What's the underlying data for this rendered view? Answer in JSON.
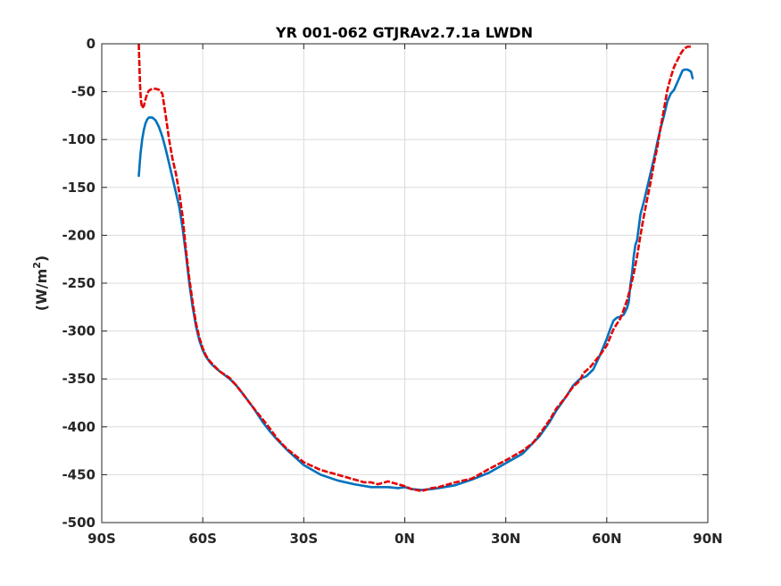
{
  "chart_data": {
    "type": "line",
    "title": "YR 001-062 GTJRAv2.7.1a LWDN",
    "xlabel": "",
    "ylabel": "(W/m",
    "ylabel_sup": "2",
    "ylabel_close": ")",
    "xlim": [
      -90,
      90
    ],
    "ylim": [
      -500,
      0
    ],
    "xticks": [
      -90,
      -60,
      -30,
      0,
      30,
      60,
      90
    ],
    "xtick_labels": [
      "90S",
      "60S",
      "30S",
      "0N",
      "30N",
      "60N",
      "90N"
    ],
    "yticks": [
      0,
      -50,
      -100,
      -150,
      -200,
      -250,
      -300,
      -350,
      -400,
      -450,
      -500
    ],
    "ytick_labels": [
      "0",
      "-50",
      "-100",
      "-150",
      "-200",
      "-250",
      "-300",
      "-350",
      "-400",
      "-450",
      "-500"
    ],
    "grid": true,
    "legend": "none",
    "series": [
      {
        "color": "#0072bd",
        "style": "solid",
        "x": [
          -79,
          -78.5,
          -78,
          -77.5,
          -77,
          -76.5,
          -76,
          -75,
          -74,
          -73,
          -72,
          -71,
          -70,
          -69,
          -68,
          -67,
          -66,
          -65,
          -64,
          -63,
          -62,
          -61,
          -60,
          -59,
          -58,
          -57,
          -55,
          -52,
          -50,
          -48,
          -45,
          -42,
          -40,
          -38,
          -35,
          -30,
          -25,
          -20,
          -15,
          -10,
          -5,
          -2,
          0,
          2,
          5,
          8,
          10,
          15,
          20,
          25,
          30,
          35,
          40,
          43,
          45,
          48,
          50,
          52,
          54,
          56,
          58,
          60,
          61,
          62,
          63,
          64,
          65,
          66,
          66.5,
          67,
          67.5,
          68,
          68.5,
          69,
          70,
          71,
          72,
          73,
          74,
          75,
          76,
          77,
          78,
          79,
          80,
          81,
          82,
          82.5,
          83,
          84,
          85,
          85.5
        ],
        "y": [
          -138,
          -115,
          -100,
          -90,
          -83,
          -79,
          -77,
          -77,
          -80,
          -87,
          -97,
          -110,
          -125,
          -140,
          -155,
          -170,
          -192,
          -220,
          -250,
          -275,
          -295,
          -310,
          -320,
          -327,
          -332,
          -336,
          -342,
          -350,
          -357,
          -366,
          -380,
          -396,
          -405,
          -413,
          -424,
          -440,
          -450,
          -456,
          -460,
          -463,
          -463,
          -464,
          -463,
          -465,
          -466,
          -465,
          -464,
          -461,
          -455,
          -448,
          -438,
          -428,
          -410,
          -395,
          -383,
          -368,
          -357,
          -350,
          -347,
          -340,
          -325,
          -308,
          -298,
          -289,
          -286,
          -285,
          -283,
          -276,
          -270,
          -252,
          -240,
          -222,
          -210,
          -205,
          -178,
          -165,
          -150,
          -135,
          -120,
          -103,
          -88,
          -75,
          -60,
          -52,
          -48,
          -40,
          -32,
          -28,
          -27,
          -27,
          -29,
          -36
        ]
      },
      {
        "color": "#e50000",
        "style": "dashed",
        "x": [
          -79,
          -78.8,
          -78.6,
          -78.4,
          -78.2,
          -78,
          -77.5,
          -77,
          -76.5,
          -76,
          -75,
          -74,
          -73,
          -72,
          -71,
          -70,
          -69,
          -68,
          -67,
          -66,
          -65,
          -64,
          -63,
          -62,
          -61,
          -60,
          -59,
          -58,
          -57,
          -55,
          -52,
          -50,
          -48,
          -45,
          -42,
          -40,
          -38,
          -35,
          -30,
          -25,
          -20,
          -15,
          -12,
          -10,
          -8,
          -5,
          -3,
          0,
          2,
          5,
          8,
          10,
          12,
          15,
          20,
          25,
          30,
          35,
          38,
          40,
          43,
          45,
          48,
          50,
          52,
          53,
          55,
          58,
          60,
          62,
          64,
          65,
          66,
          67,
          68,
          69,
          70,
          71,
          72,
          73,
          74,
          75,
          76,
          77,
          78,
          79,
          80,
          81,
          82,
          83,
          84,
          85
        ],
        "y": [
          0,
          -25,
          -45,
          -58,
          -63,
          -67,
          -65,
          -58,
          -52,
          -49,
          -47,
          -47,
          -48,
          -52,
          -75,
          -100,
          -120,
          -135,
          -155,
          -180,
          -215,
          -245,
          -270,
          -292,
          -307,
          -318,
          -326,
          -331,
          -335,
          -342,
          -349,
          -357,
          -366,
          -380,
          -393,
          -402,
          -412,
          -423,
          -437,
          -445,
          -450,
          -455,
          -458,
          -458,
          -460,
          -457,
          -459,
          -462,
          -465,
          -467,
          -464,
          -463,
          -461,
          -458,
          -454,
          -444,
          -435,
          -425,
          -417,
          -408,
          -393,
          -381,
          -368,
          -358,
          -352,
          -344,
          -338,
          -325,
          -315,
          -298,
          -287,
          -278,
          -268,
          -255,
          -240,
          -222,
          -200,
          -180,
          -162,
          -145,
          -125,
          -108,
          -87,
          -68,
          -48,
          -35,
          -24,
          -17,
          -10,
          -5,
          -3,
          -3
        ]
      }
    ]
  }
}
